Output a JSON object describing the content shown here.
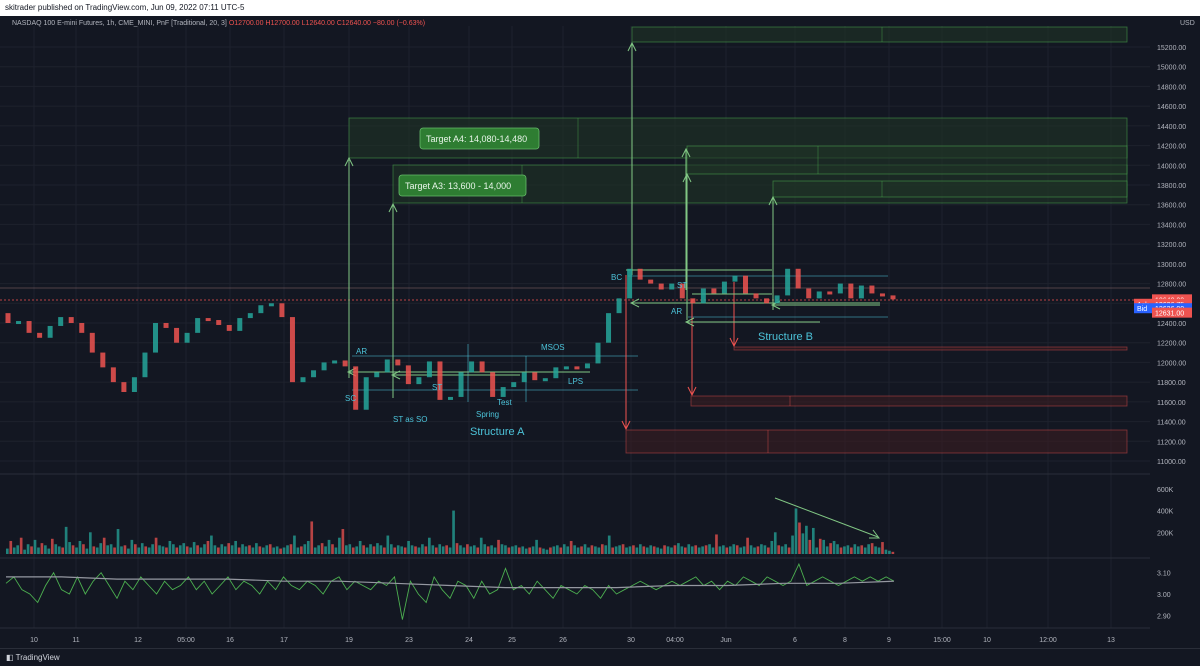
{
  "header": {
    "text": "skitrader published on TradingView.com, Jun 09, 2022 07:11 UTC-5"
  },
  "legend": {
    "symbol": "NASDAQ 100 E-mini Futures, 1h, CME_MINI, PnF [Traditional, 20, 3]",
    "open": "O12700.00",
    "high": "H12700.00",
    "low": "L12640.00",
    "close": "C12640.00",
    "change": "−80.00 (−0.63%)"
  },
  "currency": "USD",
  "footer": {
    "brand": "TradingView"
  },
  "colors": {
    "up": "#26a69a",
    "down": "#ef5350",
    "target": "#81c784",
    "note": "#4cc3d9",
    "bg": "#131722"
  },
  "chart_data": [
    {
      "type": "line",
      "title": "",
      "ylim": [
        11000,
        15300
      ],
      "price_ticks": [
        "15200.00",
        "15000.00",
        "14800.00",
        "14600.00",
        "14400.00",
        "14200.00",
        "14000.00",
        "13800.00",
        "13600.00",
        "13400.00",
        "13200.00",
        "13000.00",
        "12800.00",
        "12600.00",
        "12400.00",
        "12200.00",
        "12000.00",
        "11800.00",
        "11600.00",
        "11400.00",
        "11200.00",
        "11000.00"
      ],
      "x_ticks": [
        "10",
        "11",
        "12",
        "05:00",
        "16",
        "17",
        "19",
        "23",
        "24",
        "25",
        "26",
        "30",
        "04:00",
        "Jun",
        "6",
        "8",
        "9",
        "15:00",
        "10",
        "12:00",
        "13"
      ],
      "price_labels": [
        {
          "key": "last",
          "text": "12640.00",
          "price": 12640,
          "color": "#ef5350"
        },
        {
          "key": "ask",
          "tag": "Ask",
          "text": "12636.75",
          "price": 12595,
          "color": "#ef5350"
        },
        {
          "key": "bid",
          "tag": "Bid",
          "text": "12636.00",
          "price": 12550,
          "color": "#2962ff"
        },
        {
          "key": "low",
          "text": "12631.00",
          "price": 12505,
          "color": "#ef5350"
        }
      ],
      "series": [
        {
          "name": "",
          "y": [
            12400,
            12420,
            12300,
            12250,
            12370,
            12460,
            12400,
            12300,
            12100,
            11950,
            11800,
            11700,
            11850,
            12100,
            12400,
            12350,
            12200,
            12300,
            12450,
            12430,
            12380,
            12320,
            12450,
            12500,
            12580,
            12600,
            12460,
            11800,
            11850,
            11920,
            12000,
            12020,
            11960,
            11520,
            11850,
            11900,
            12030,
            11970,
            11780,
            11850,
            12010,
            11620,
            11650,
            11900,
            12010,
            11900,
            11650,
            11750,
            11800,
            11900,
            11820,
            11840,
            11950,
            11960,
            11940,
            11990,
            12200,
            12500,
            12650,
            12950,
            12840,
            12800,
            12740,
            12800,
            12650,
            12600,
            12750,
            12700,
            12820,
            12880,
            12700,
            12650,
            12600,
            12680,
            12950,
            12750,
            12650,
            12720,
            12700,
            12800,
            12650,
            12780,
            12700,
            12680,
            12640
          ]
        }
      ],
      "annotations": [
        "SC",
        "AR",
        "ST",
        "ST as SO",
        "Spring",
        "Test",
        "MSOS",
        "LPS",
        "BC",
        "AR",
        "ST"
      ],
      "structures": [
        "Structure A",
        "Structure B"
      ],
      "targets": [
        "Target A4: 14,080-14,480",
        "Target A3: 13,600 - 14,000"
      ]
    },
    {
      "type": "bar",
      "title": "",
      "ylim": [
        0,
        700000
      ],
      "yticks": [
        "600K",
        "400K",
        "200K"
      ],
      "series": [
        {
          "name": "",
          "values": [
            50000,
            120000,
            60000,
            80000,
            150000,
            40000,
            90000,
            70000,
            130000,
            60000,
            100000,
            80000,
            50000,
            140000,
            90000,
            70000,
            60000,
            250000,
            110000,
            80000,
            60000,
            120000,
            90000,
            50000,
            200000,
            70000,
            60000,
            100000,
            150000,
            80000,
            90000,
            60000,
            230000,
            70000,
            80000,
            50000,
            130000,
            90000,
            60000,
            100000,
            70000,
            60000,
            90000,
            150000,
            80000,
            70000,
            60000,
            120000,
            90000,
            60000,
            80000,
            100000,
            70000,
            60000,
            110000,
            80000,
            60000,
            90000,
            120000,
            170000,
            80000,
            60000,
            90000,
            70000,
            100000,
            80000,
            120000,
            60000,
            90000,
            70000,
            80000,
            60000,
            100000,
            70000,
            60000,
            80000,
            90000,
            60000,
            70000,
            50000,
            60000,
            80000,
            90000,
            170000,
            60000,
            70000,
            90000,
            120000,
            300000,
            60000,
            80000,
            100000,
            70000,
            130000,
            90000,
            60000,
            150000,
            230000,
            80000,
            90000,
            60000,
            70000,
            120000,
            80000,
            60000,
            90000,
            70000,
            100000,
            80000,
            60000,
            170000,
            90000,
            60000,
            80000,
            70000,
            60000,
            120000,
            80000,
            70000,
            60000,
            90000,
            70000,
            150000,
            80000,
            60000,
            90000,
            70000,
            80000,
            60000,
            400000,
            100000,
            80000,
            60000,
            90000,
            70000,
            80000,
            60000,
            150000,
            90000,
            70000,
            80000,
            60000,
            130000,
            90000,
            80000,
            60000,
            70000,
            80000,
            60000,
            70000,
            50000,
            60000,
            70000,
            130000,
            60000,
            50000,
            40000,
            60000,
            70000,
            80000,
            60000,
            90000,
            70000,
            120000,
            80000,
            60000,
            70000,
            90000,
            60000,
            80000,
            70000,
            60000,
            90000,
            80000,
            170000,
            60000,
            70000,
            80000,
            90000,
            60000,
            70000,
            80000,
            60000,
            90000,
            70000,
            60000,
            80000,
            70000,
            60000,
            50000,
            80000,
            70000,
            60000,
            80000,
            100000,
            70000,
            60000,
            90000,
            70000,
            80000,
            60000,
            70000,
            80000,
            90000,
            60000,
            180000,
            70000,
            80000,
            60000,
            70000,
            90000,
            80000,
            60000,
            70000,
            150000,
            80000,
            60000,
            70000,
            90000,
            80000,
            60000,
            120000,
            200000,
            80000,
            70000,
            90000,
            60000,
            170000,
            420000,
            290000,
            190000,
            260000,
            130000,
            240000,
            60000,
            140000,
            130000,
            70000,
            100000,
            120000,
            90000,
            60000,
            70000,
            80000,
            60000,
            90000,
            70000,
            80000,
            60000,
            90000,
            100000,
            70000,
            60000,
            110000,
            40000,
            30000,
            20000
          ]
        }
      ]
    },
    {
      "type": "line",
      "title": "",
      "ylim": [
        2.85,
        3.15
      ],
      "yticks": [
        "3.10",
        "3.00",
        "2.90"
      ],
      "series": [
        {
          "name": "",
          "values": [
            3.05,
            3.08,
            3.02,
            3.0,
            2.96,
            3.04,
            3.1,
            3.02,
            3.0,
            3.08,
            3.0,
            3.06,
            3.1,
            3.04,
            2.98,
            3.06,
            3.02,
            3.08,
            3.04,
            3.0,
            3.06,
            3.02,
            3.04,
            3.08,
            3.02,
            3.06,
            3.0,
            3.04,
            3.08,
            3.02,
            3.06,
            3.04,
            3.0,
            3.06,
            3.02,
            3.08,
            3.04,
            3.02,
            3.06,
            3.04,
            3.0,
            3.06,
            3.08,
            3.02,
            3.06,
            3.04,
            3.02,
            3.06,
            3.04,
            3.08,
            2.88,
            3.06,
            3.0,
            2.96,
            3.08,
            3.02,
            2.98,
            3.06,
            3.04,
            2.98,
            3.06,
            3.0,
            3.02,
            3.12,
            3.02,
            3.04,
            3.0,
            3.06,
            3.02,
            2.98,
            3.04,
            3.02,
            3.0,
            3.04,
            3.02,
            2.98,
            3.04,
            3.0,
            3.02,
            3.04,
            3.06,
            3.04,
            3.02,
            3.04,
            3.06,
            3.04,
            3.06,
            3.08,
            3.04,
            3.06,
            3.02,
            3.06,
            3.04,
            3.08,
            3.06,
            3.04,
            3.08,
            3.06,
            3.04,
            3.06,
            3.14,
            3.04,
            3.06,
            3.08,
            3.06,
            3.04,
            3.06,
            3.08,
            3.06,
            3.08,
            3.06,
            3.08,
            3.06
          ]
        },
        {
          "name": "",
          "values": [
            3.08,
            3.08,
            3.07,
            3.07,
            3.07,
            3.06,
            3.06,
            3.05,
            3.04,
            3.03,
            3.03,
            3.03,
            3.04,
            3.04,
            3.05,
            3.05,
            3.06
          ]
        }
      ]
    }
  ]
}
